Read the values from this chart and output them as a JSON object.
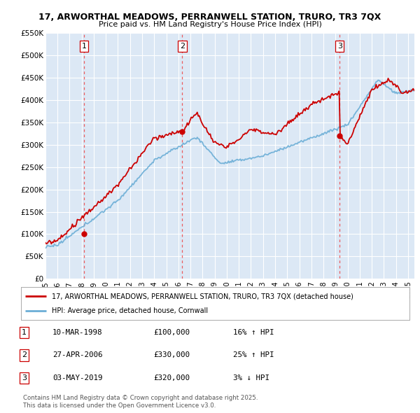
{
  "title_line1": "17, ARWORTHAL MEADOWS, PERRANWELL STATION, TRURO, TR3 7QX",
  "title_line2": "Price paid vs. HM Land Registry's House Price Index (HPI)",
  "ylim": [
    0,
    550000
  ],
  "xlim_start": 1995.0,
  "xlim_end": 2025.5,
  "yticks": [
    0,
    50000,
    100000,
    150000,
    200000,
    250000,
    300000,
    350000,
    400000,
    450000,
    500000,
    550000
  ],
  "ytick_labels": [
    "£0",
    "£50K",
    "£100K",
    "£150K",
    "£200K",
    "£250K",
    "£300K",
    "£350K",
    "£400K",
    "£450K",
    "£500K",
    "£550K"
  ],
  "background_color": "#ffffff",
  "plot_bg_color": "#dce8f5",
  "grid_color": "#ffffff",
  "sale_color": "#cc0000",
  "hpi_color": "#6baed6",
  "vline_color": "#ee4444",
  "transactions": [
    {
      "num": 1,
      "year": 1998.19,
      "price": 100000
    },
    {
      "num": 2,
      "year": 2006.32,
      "price": 330000
    },
    {
      "num": 3,
      "year": 2019.34,
      "price": 320000
    }
  ],
  "legend_line1": "17, ARWORTHAL MEADOWS, PERRANWELL STATION, TRURO, TR3 7QX (detached house)",
  "legend_line2": "HPI: Average price, detached house, Cornwall",
  "footer_line1": "Contains HM Land Registry data © Crown copyright and database right 2025.",
  "footer_line2": "This data is licensed under the Open Government Licence v3.0.",
  "table_rows": [
    [
      "1",
      "10-MAR-1998",
      "£100,000",
      "16% ↑ HPI"
    ],
    [
      "2",
      "27-APR-2006",
      "£330,000",
      "25% ↑ HPI"
    ],
    [
      "3",
      "03-MAY-2019",
      "£320,000",
      "3% ↓ HPI"
    ]
  ]
}
